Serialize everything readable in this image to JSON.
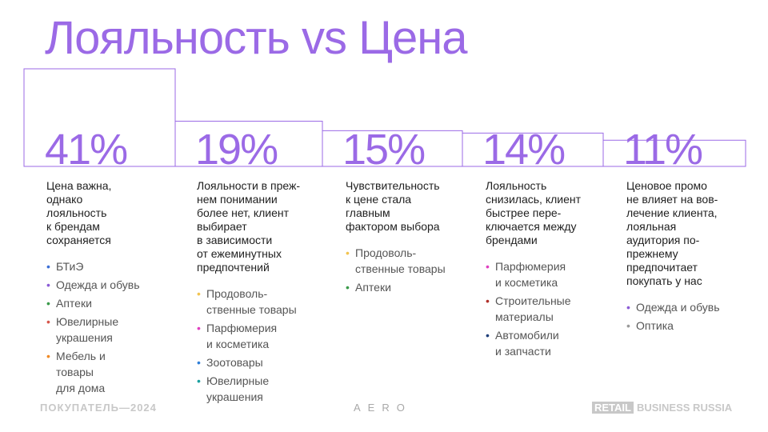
{
  "title": "Лояльность vs Цена",
  "accent_color": "#9b6ae6",
  "chart_data": {
    "type": "bar",
    "categories": [
      "Цена важна, однако лояльность к брендам сохраняется",
      "Лояльности в прежнем понимании более нет, клиент выбирает в зависимости от ежеминутных предпочтений",
      "Чувствительность к цене стала главным фактором выбора",
      "Лояльность снизилась, клиент быстрее переключается между брендами",
      "Ценовое промо не влияет на вовлечение клиента, лояльная аудитория по-прежнему предпочитает покупать у нас"
    ],
    "values": [
      41,
      19,
      15,
      14,
      11
    ],
    "labels": [
      "41%",
      "19%",
      "15%",
      "14%",
      "11%"
    ],
    "unit": "%"
  },
  "columns": [
    {
      "desc": [
        "Цена важна,",
        "однако",
        "лояльность",
        "к брендам",
        "сохраняется"
      ],
      "bullets": [
        {
          "lines": [
            "БТиЭ"
          ],
          "color": "#3b6fd6"
        },
        {
          "lines": [
            "Одежда и обувь"
          ],
          "color": "#8b5cd6"
        },
        {
          "lines": [
            "Аптеки"
          ],
          "color": "#3a9a4a"
        },
        {
          "lines": [
            "Ювелирные",
            "украшения"
          ],
          "color": "#d6564c"
        },
        {
          "lines": [
            "Мебель и",
            "товары",
            "для дома"
          ],
          "color": "#f08a24"
        }
      ]
    },
    {
      "desc": [
        "Лояльности в преж-",
        "нем понимании",
        "более нет, клиент",
        "выбирает",
        "в зависимости",
        "от ежеминутных",
        "предпочтений"
      ],
      "bullets": [
        {
          "lines": [
            "Продоволь-",
            "ственные товары"
          ],
          "color": "#f2c450"
        },
        {
          "lines": [
            "Парфюмерия",
            "и косметика"
          ],
          "color": "#e040c0"
        },
        {
          "lines": [
            "Зоотовары"
          ],
          "color": "#2f7fd8"
        },
        {
          "lines": [
            "Ювелирные",
            "украшения"
          ],
          "color": "#1aa0a0"
        }
      ]
    },
    {
      "desc": [
        "Чувствительность",
        "к цене стала",
        "главным",
        "фактором выбора"
      ],
      "bullets": [
        {
          "lines": [
            "Продоволь-",
            "ственные товары"
          ],
          "color": "#f2c450"
        },
        {
          "lines": [
            "Аптеки"
          ],
          "color": "#3a9a4a"
        }
      ]
    },
    {
      "desc": [
        "Лояльность",
        "снизилась, клиент",
        "быстрее пере-",
        "ключается между",
        "брендами"
      ],
      "bullets": [
        {
          "lines": [
            "Парфюмерия",
            "и косметика"
          ],
          "color": "#e040c0"
        },
        {
          "lines": [
            "Строительные",
            "материалы"
          ],
          "color": "#b0302a"
        },
        {
          "lines": [
            "Автомобили",
            "и запчасти"
          ],
          "color": "#1f3f7a"
        }
      ]
    },
    {
      "desc": [
        "Ценовое промо",
        "не влияет на вов-",
        "лечение клиента,",
        "лояльная",
        "аудитория по-",
        "прежнему",
        "предпочитает",
        "покупать у нас"
      ],
      "bullets": [
        {
          "lines": [
            "Одежда и обувь"
          ],
          "color": "#8b5cd6"
        },
        {
          "lines": [
            "Оптика"
          ],
          "color": "#9a9a9a"
        }
      ]
    }
  ],
  "footer": {
    "left": "ПОКУПАТЕЛЬ—2024",
    "center": "AERO",
    "right_box": "RETAIL",
    "right_text": "BUSINESS RUSSIA"
  }
}
